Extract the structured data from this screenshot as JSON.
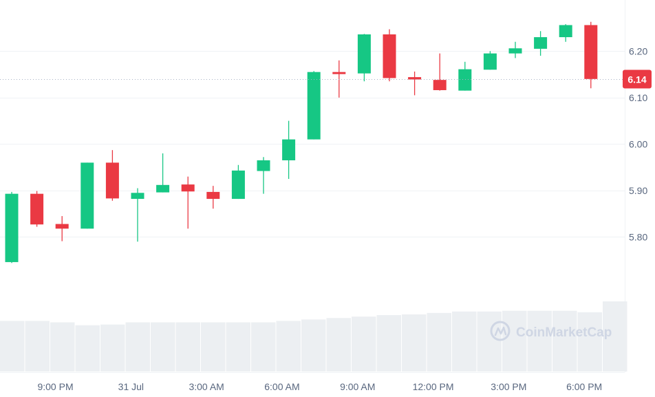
{
  "colors": {
    "up": "#16c784",
    "down": "#ea3943",
    "grid": "#eff2f5",
    "axis_text": "#58667e",
    "volume": "#eceff2",
    "watermark": "#cfd6e4",
    "price_line": "#a6b0c3",
    "badge_bg": "#ea3943",
    "badge_text": "#ffffff"
  },
  "watermark": {
    "brand": "CoinMarketCap",
    "logo_icon": "coinmarketcap-logo-icon"
  },
  "current_price": {
    "label": "6.14",
    "value": 6.14
  },
  "chart_data": {
    "type": "candlestick",
    "title": "",
    "xlabel": "",
    "ylabel": "",
    "ylim": [
      5.7,
      6.27
    ],
    "y_ticks": [
      {
        "label": "5.80",
        "value": 5.8
      },
      {
        "label": "5.90",
        "value": 5.9
      },
      {
        "label": "6.00",
        "value": 6.0
      },
      {
        "label": "6.10",
        "value": 6.1
      },
      {
        "label": "6.20",
        "value": 6.2
      }
    ],
    "x_ticks": [
      {
        "label": "9:00 PM",
        "index": 1.75
      },
      {
        "label": "31 Jul",
        "index": 4.75
      },
      {
        "label": "3:00 AM",
        "index": 7.75
      },
      {
        "label": "6:00 AM",
        "index": 10.75
      },
      {
        "label": "9:00 AM",
        "index": 13.75
      },
      {
        "label": "12:00 PM",
        "index": 16.75
      },
      {
        "label": "3:00 PM",
        "index": 19.75
      },
      {
        "label": "6:00 PM",
        "index": 22.75
      }
    ],
    "grid": true,
    "candles": [
      {
        "o": 5.746,
        "h": 5.897,
        "l": 5.744,
        "c": 5.893
      },
      {
        "o": 5.893,
        "h": 5.899,
        "l": 5.822,
        "c": 5.827
      },
      {
        "o": 5.828,
        "h": 5.845,
        "l": 5.791,
        "c": 5.818
      },
      {
        "o": 5.818,
        "h": 5.96,
        "l": 5.818,
        "c": 5.96
      },
      {
        "o": 5.96,
        "h": 5.987,
        "l": 5.878,
        "c": 5.883
      },
      {
        "o": 5.882,
        "h": 5.905,
        "l": 5.79,
        "c": 5.895
      },
      {
        "o": 5.896,
        "h": 5.98,
        "l": 5.896,
        "c": 5.912
      },
      {
        "o": 5.913,
        "h": 5.93,
        "l": 5.818,
        "c": 5.898
      },
      {
        "o": 5.897,
        "h": 5.91,
        "l": 5.861,
        "c": 5.882
      },
      {
        "o": 5.882,
        "h": 5.955,
        "l": 5.882,
        "c": 5.943
      },
      {
        "o": 5.942,
        "h": 5.972,
        "l": 5.893,
        "c": 5.965
      },
      {
        "o": 5.965,
        "h": 6.05,
        "l": 5.925,
        "c": 6.01
      },
      {
        "o": 6.01,
        "h": 6.157,
        "l": 6.01,
        "c": 6.155
      },
      {
        "o": 6.155,
        "h": 6.18,
        "l": 6.1,
        "c": 6.153
      },
      {
        "o": 6.152,
        "h": 6.237,
        "l": 6.135,
        "c": 6.236
      },
      {
        "o": 6.236,
        "h": 6.247,
        "l": 6.135,
        "c": 6.142
      },
      {
        "o": 6.144,
        "h": 6.156,
        "l": 6.105,
        "c": 6.139
      },
      {
        "o": 6.138,
        "h": 6.195,
        "l": 6.115,
        "c": 6.116
      },
      {
        "o": 6.115,
        "h": 6.177,
        "l": 6.115,
        "c": 6.161
      },
      {
        "o": 6.16,
        "h": 6.2,
        "l": 6.16,
        "c": 6.195
      },
      {
        "o": 6.195,
        "h": 6.22,
        "l": 6.185,
        "c": 6.206
      },
      {
        "o": 6.205,
        "h": 6.243,
        "l": 6.19,
        "c": 6.23
      },
      {
        "o": 6.23,
        "h": 6.258,
        "l": 6.22,
        "c": 6.256
      },
      {
        "o": 6.256,
        "h": 6.263,
        "l": 6.12,
        "c": 6.14
      }
    ],
    "volume": [
      70,
      70,
      68,
      64,
      65,
      68,
      68,
      68,
      68,
      68,
      68,
      70,
      72,
      74,
      76,
      78,
      79,
      81,
      83,
      83,
      84,
      84,
      84,
      82,
      97
    ]
  }
}
